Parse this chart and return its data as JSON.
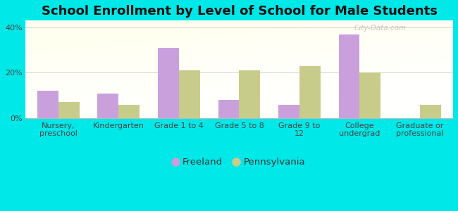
{
  "title": "School Enrollment by Level of School for Male Students",
  "categories": [
    "Nursery,\npreschool",
    "Kindergarten",
    "Grade 1 to 4",
    "Grade 5 to 8",
    "Grade 9 to\n12",
    "College\nundergrad",
    "Graduate or\nprofessional"
  ],
  "freeland": [
    12,
    11,
    31,
    8,
    6,
    37,
    0
  ],
  "pennsylvania": [
    7,
    6,
    21,
    21,
    23,
    20,
    6
  ],
  "freeland_color": "#c9a0dc",
  "pennsylvania_color": "#c8cc8a",
  "background_color": "#00e8e8",
  "yticks": [
    0,
    20,
    40
  ],
  "ylim": [
    0,
    43
  ],
  "legend_freeland": "Freeland",
  "legend_pennsylvania": "Pennsylvania",
  "title_fontsize": 13,
  "bar_width": 0.35,
  "tick_fontsize": 8,
  "watermark": "City-Data.com",
  "watermark_color": "#bbbbbb"
}
